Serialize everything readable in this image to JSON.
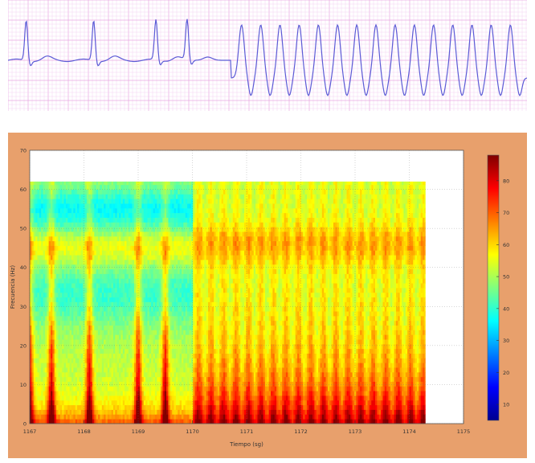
{
  "chart_data": [
    {
      "type": "line",
      "title": "",
      "xlabel": "",
      "ylabel": "",
      "grid": true,
      "colors": {
        "trace": "#5b5bd6",
        "grid_minor": "#f3c9ee",
        "grid_major": "#e9a6e2",
        "background": "#ffffff"
      },
      "series": [
        {
          "beats": [
            {
              "t": 0.035,
              "type": "narrow"
            },
            {
              "t": 0.165,
              "type": "narrow"
            },
            {
              "t": 0.285,
              "type": "narrow"
            },
            {
              "t": 0.345,
              "type": "narrow"
            },
            {
              "t": 0.45,
              "type": "wide"
            },
            {
              "t": 0.487,
              "type": "wide"
            },
            {
              "t": 0.524,
              "type": "wide"
            },
            {
              "t": 0.561,
              "type": "wide"
            },
            {
              "t": 0.598,
              "type": "wide"
            },
            {
              "t": 0.635,
              "type": "wide"
            },
            {
              "t": 0.672,
              "type": "wide"
            },
            {
              "t": 0.709,
              "type": "wide"
            },
            {
              "t": 0.746,
              "type": "wide"
            },
            {
              "t": 0.783,
              "type": "wide"
            },
            {
              "t": 0.82,
              "type": "wide"
            },
            {
              "t": 0.857,
              "type": "wide"
            },
            {
              "t": 0.894,
              "type": "wide"
            },
            {
              "t": 0.931,
              "type": "wide"
            },
            {
              "t": 0.968,
              "type": "wide"
            }
          ]
        }
      ]
    },
    {
      "type": "heatmap",
      "title": "",
      "xlabel": "Tiempo (sg)",
      "ylabel": "Frecuencia (Hz)",
      "xlim": [
        1167,
        1175
      ],
      "ylim": [
        0,
        70
      ],
      "x_ticks": [
        "1167",
        "1168",
        "1169",
        "1170",
        "1171",
        "1172",
        "1173",
        "1174",
        "1175"
      ],
      "y_ticks": [
        "0",
        "10",
        "20",
        "30",
        "40",
        "50",
        "60",
        "70"
      ],
      "data_xlim": [
        1167,
        1174.3
      ],
      "data_ylim": [
        0,
        62
      ],
      "colorbar": {
        "ticks": [
          "10",
          "20",
          "30",
          "40",
          "50",
          "60",
          "70",
          "80"
        ],
        "range": [
          5,
          88
        ]
      },
      "grid": true,
      "colors": {
        "frame": "#e8a06c",
        "plot_bg": "#ffffff"
      },
      "sinus_beats": [
        1167.0,
        1167.4,
        1168.1,
        1169.0,
        1169.5
      ],
      "tachy_start": 1170.0,
      "tachy_period": 0.23,
      "tachy_end": 1174.3
    }
  ]
}
